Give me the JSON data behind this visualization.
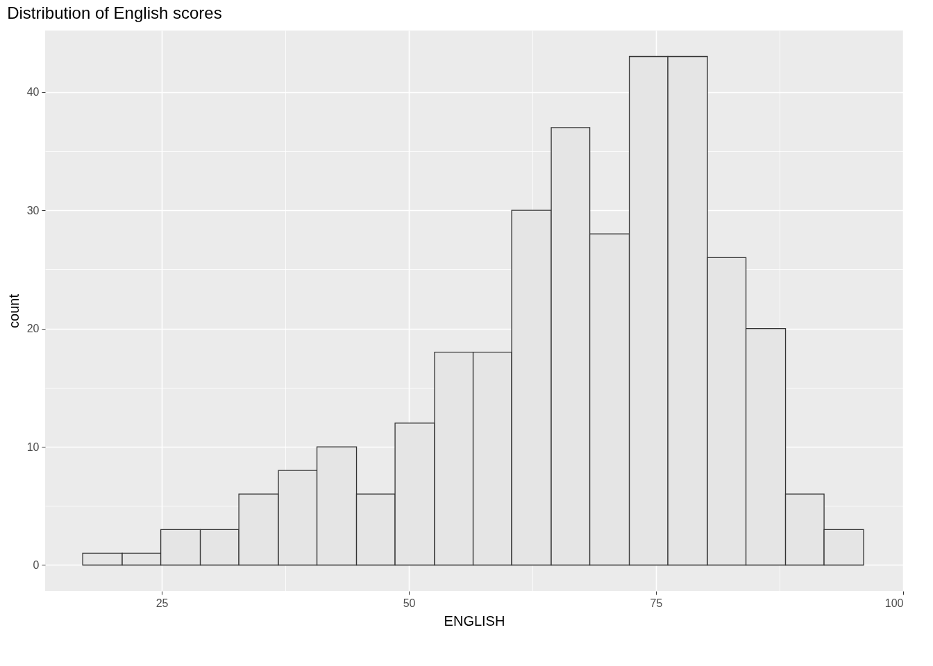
{
  "chart_data": {
    "type": "histogram",
    "title": "Distribution of English scores",
    "xlabel": "ENGLISH",
    "ylabel": "count",
    "bins": [
      17.0,
      21.0,
      24.9,
      28.9,
      32.8,
      36.8,
      40.7,
      44.7,
      48.6,
      52.6,
      56.5,
      60.4,
      64.4,
      68.3,
      72.3,
      76.2,
      80.2,
      84.1,
      88.1,
      92.0,
      96.0
    ],
    "values": [
      1,
      1,
      3,
      3,
      6,
      8,
      10,
      6,
      12,
      18,
      18,
      30,
      37,
      28,
      43,
      43,
      26,
      20,
      6,
      3
    ],
    "color": "#e5e5e5",
    "xlim": [
      13.2,
      100
    ],
    "xticks": [
      25,
      {
        "value": 37.5,
        "label": null
      },
      50,
      {
        "value": 62.5,
        "label": null
      },
      75,
      {
        "value": 87.5,
        "label": null
      },
      100
    ],
    "ylim": [
      -2.2,
      45.2
    ],
    "yticks": [
      0,
      {
        "value": 5,
        "label": null
      },
      10,
      {
        "value": 15,
        "label": null
      },
      20,
      {
        "value": 25,
        "label": null
      },
      30,
      {
        "value": 35,
        "label": null
      },
      40
    ],
    "grid": true
  }
}
